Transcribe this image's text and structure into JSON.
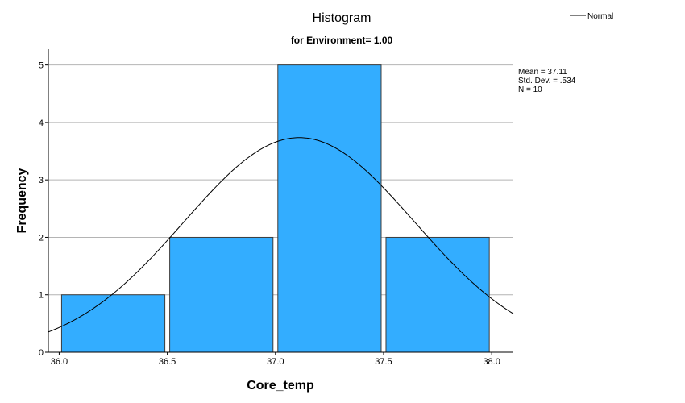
{
  "chart_data": {
    "type": "bar",
    "title": "Histogram",
    "subtitle": "for Environment= 1.00",
    "xlabel": "Core_temp",
    "ylabel": "Frequency",
    "bins": [
      {
        "from": 36.0,
        "to": 36.5,
        "count": 1
      },
      {
        "from": 36.5,
        "to": 37.0,
        "count": 2
      },
      {
        "from": 37.0,
        "to": 37.5,
        "count": 5
      },
      {
        "from": 37.5,
        "to": 38.0,
        "count": 2
      }
    ],
    "x_ticks": [
      "36.0",
      "36.5",
      "37.0",
      "37.5",
      "38.0"
    ],
    "y_ticks": [
      "0",
      "1",
      "2",
      "3",
      "4",
      "5"
    ],
    "xlim": [
      35.95,
      38.1
    ],
    "ylim": [
      0,
      5.5
    ],
    "grid": "horizontal",
    "bar_color": "#33adff",
    "normal_curve": {
      "mean": 37.11,
      "sd": 0.534,
      "n": 10,
      "bin_width": 0.5
    },
    "stats": [
      "Mean = 37.11",
      "Std. Dev. = .534",
      "N = 10"
    ],
    "legend": {
      "label": "Normal",
      "position": "top-right"
    }
  }
}
